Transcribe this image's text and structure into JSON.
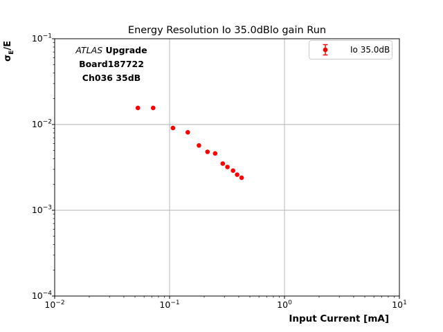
{
  "chart_data": {
    "type": "scatter",
    "title": "Energy Resolution Io 35.0dBlo gain Run",
    "xlabel": "Input Current [mA]",
    "ylabel": "σE/E",
    "ylabel_parts": {
      "sigma": "σ",
      "sub": "E",
      "rest": "/E"
    },
    "xscale": "log",
    "yscale": "log",
    "xlim": [
      0.01,
      10
    ],
    "ylim": [
      0.0001,
      0.1
    ],
    "x_tick_exponents": [
      -2,
      -1,
      0,
      1
    ],
    "y_tick_exponents": [
      -1,
      -2,
      -3,
      -4
    ],
    "grid": true,
    "grid_color": "#b0b0b0",
    "axis_color": "#000000",
    "annotation": {
      "line1_italic": "ATLAS",
      "line1_bold": " Upgrade",
      "line2": "Board187722",
      "line3": "Ch036 35dB"
    },
    "legend": {
      "position": "upper right",
      "entries": [
        {
          "label": "Io 35.0dB",
          "color": "#ff0000",
          "marker": "errorbar-circle"
        }
      ]
    },
    "series": [
      {
        "name": "Io 35.0dB",
        "color": "#ff0000",
        "points": [
          {
            "x": 0.053,
            "y": 0.0156
          },
          {
            "x": 0.072,
            "y": 0.0156
          },
          {
            "x": 0.107,
            "y": 0.0091
          },
          {
            "x": 0.144,
            "y": 0.0081
          },
          {
            "x": 0.18,
            "y": 0.0057
          },
          {
            "x": 0.214,
            "y": 0.0048
          },
          {
            "x": 0.249,
            "y": 0.0046
          },
          {
            "x": 0.29,
            "y": 0.0035
          },
          {
            "x": 0.319,
            "y": 0.0032
          },
          {
            "x": 0.357,
            "y": 0.0029
          },
          {
            "x": 0.387,
            "y": 0.0026
          },
          {
            "x": 0.424,
            "y": 0.0024
          }
        ]
      }
    ]
  }
}
